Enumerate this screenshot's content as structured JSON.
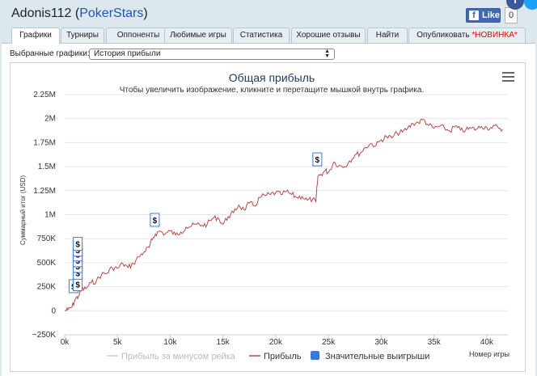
{
  "header": {
    "player_name": "Adonis112",
    "open_paren": "(",
    "site": "PokerStars",
    "close_paren": ")",
    "like_label": "Like",
    "like_count": "0"
  },
  "tabs": [
    {
      "label": "Графики",
      "active": true
    },
    {
      "label": "Турниры"
    },
    {
      "label": "Оппоненты"
    },
    {
      "label": "Любимые игры"
    },
    {
      "label": "Статистика"
    },
    {
      "label": "Хорошие отзывы"
    },
    {
      "label": "Найти"
    },
    {
      "label": "Опубликовать",
      "badge": "*НОВИНКА*"
    }
  ],
  "graph_select": {
    "label": "Выбранные графики:",
    "value": "История прибыли"
  },
  "chart_data": {
    "type": "line",
    "title": "Общая прибыль",
    "subtitle": "Чтобы увеличить изображение, кликните и перетащите мышкой внутрь графика.",
    "ylabel": "Суммарный итог (USD)",
    "xlabel": "Номер игры",
    "y_ticks": [
      "2.25M",
      "2M",
      "1.75M",
      "1.5M",
      "1.25M",
      "1M",
      "750K",
      "500K",
      "250K",
      "0",
      "−250K"
    ],
    "x_ticks": [
      "0k",
      "5k",
      "10k",
      "15k",
      "20k",
      "25k",
      "30k",
      "35k",
      "40k"
    ],
    "ylim": [
      -250000,
      2250000
    ],
    "xlim": [
      0,
      42000
    ],
    "series": [
      {
        "name": "Прибыль",
        "color": "#b94a48",
        "x": [
          0,
          300,
          700,
          1000,
          1300,
          1600,
          2000,
          2500,
          3000,
          3500,
          4000,
          4500,
          5000,
          5500,
          6000,
          6500,
          7000,
          7500,
          8000,
          8300,
          8600,
          9000,
          9500,
          10000,
          10500,
          11000,
          11500,
          12000,
          12500,
          13000,
          13500,
          14000,
          14500,
          15000,
          15500,
          16000,
          16500,
          17000,
          17500,
          18000,
          18500,
          19000,
          19500,
          20000,
          20500,
          21000,
          21500,
          22000,
          22500,
          23000,
          23500,
          23800,
          24000,
          24300,
          24700,
          25000,
          25500,
          26000,
          26500,
          27000,
          27500,
          28000,
          28500,
          29000,
          29500,
          30000,
          30500,
          31000,
          31500,
          32000,
          32500,
          33000,
          33500,
          34000,
          34500,
          35000,
          35500,
          36000,
          36500,
          37000,
          37500,
          38000,
          38500,
          39000,
          39500,
          40000,
          40500,
          41000,
          41500
        ],
        "values": [
          0,
          10000,
          40000,
          120000,
          150000,
          220000,
          230000,
          290000,
          310000,
          380000,
          390000,
          450000,
          440000,
          490000,
          450000,
          490000,
          560000,
          610000,
          660000,
          740000,
          800000,
          830000,
          800000,
          830000,
          790000,
          820000,
          870000,
          880000,
          900000,
          890000,
          900000,
          960000,
          970000,
          900000,
          980000,
          1020000,
          1100000,
          1050000,
          1120000,
          1090000,
          1180000,
          1200000,
          1210000,
          1230000,
          1210000,
          1240000,
          1210000,
          1180000,
          1190000,
          1150000,
          1160000,
          1130000,
          1400000,
          1420000,
          1460000,
          1440000,
          1550000,
          1510000,
          1500000,
          1560000,
          1620000,
          1640000,
          1700000,
          1740000,
          1720000,
          1780000,
          1810000,
          1800000,
          1850000,
          1860000,
          1900000,
          1950000,
          1960000,
          1990000,
          1930000,
          1900000,
          1920000,
          1900000,
          1870000,
          1920000,
          1880000,
          1880000,
          1900000,
          1890000,
          1920000,
          1910000,
          1900000,
          1920000,
          1890000
        ]
      }
    ],
    "significant_wins": [
      {
        "x": 800,
        "y": 180000
      },
      {
        "x": 1200,
        "y": 200000
      },
      {
        "x": 1200,
        "y": 320000
      },
      {
        "x": 1200,
        "y": 390000
      },
      {
        "x": 1200,
        "y": 450000
      },
      {
        "x": 1200,
        "y": 510000
      },
      {
        "x": 1200,
        "y": 560000
      },
      {
        "x": 1200,
        "y": 620000
      },
      {
        "x": 8500,
        "y": 870000
      },
      {
        "x": 23900,
        "y": 1500000
      }
    ],
    "win_marker_label": "$",
    "legend": [
      {
        "name": "Прибыль за минусом рейка",
        "color": "#cccccc"
      },
      {
        "name": "Прибыль",
        "color": "#b94a48"
      },
      {
        "name": "Значительные выигрыши",
        "color": "#3a7bd5"
      }
    ]
  }
}
